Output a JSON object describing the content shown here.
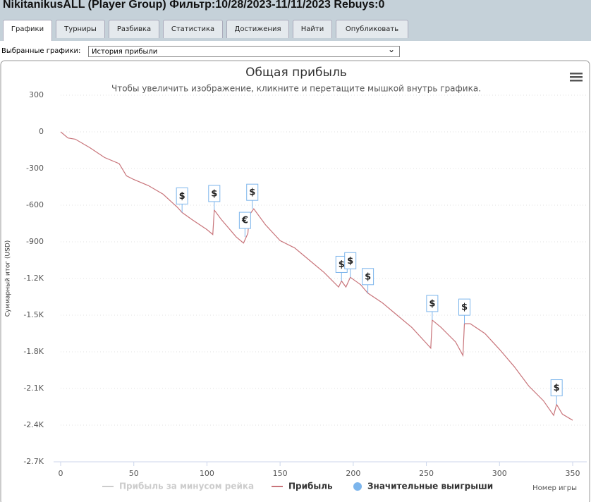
{
  "header": {
    "title": "NikitanikusALL (Player Group) Фильтр:10/28/2023-11/11/2023 Rebuys:0"
  },
  "tabs": [
    "Графики",
    "Турниры",
    "Разбивка",
    "Статистика",
    "Достижения",
    "Найти",
    "Опубликовать"
  ],
  "active_tab": 0,
  "selector": {
    "label": "Выбранные графики:",
    "value": "История прибыли"
  },
  "chart_data": {
    "type": "line",
    "title": "Общая прибыль",
    "subtitle": "Чтобы увеличить изображение, кликните и перетащите мышкой внутрь графика.",
    "x_label": "Номер игры",
    "y_label": "Суммарный итог (USD)",
    "xlim": [
      0,
      350
    ],
    "xticks": [
      0,
      50,
      100,
      150,
      200,
      250,
      300,
      350
    ],
    "ylim": [
      -2700,
      300
    ],
    "yticks": [
      300,
      0,
      -300,
      -600,
      -900,
      {
        "value": -1200,
        "label": "-1.2K"
      },
      {
        "value": -1500,
        "label": "-1.5K"
      },
      {
        "value": -1800,
        "label": "-1.8K"
      },
      {
        "value": -2100,
        "label": "-2.1K"
      },
      {
        "value": -2400,
        "label": "-2.4K"
      },
      {
        "value": -2700,
        "label": "-2.7K"
      }
    ],
    "grid": true,
    "x": [
      0,
      5,
      10,
      20,
      30,
      40,
      45,
      50,
      60,
      70,
      80,
      83,
      90,
      100,
      104,
      105,
      110,
      120,
      125,
      128,
      129,
      132,
      140,
      150,
      160,
      170,
      180,
      190,
      192,
      195,
      198,
      205,
      210,
      220,
      230,
      240,
      250,
      253,
      254,
      260,
      270,
      275,
      276,
      280,
      290,
      300,
      310,
      320,
      330,
      337,
      339,
      343,
      350
    ],
    "series": [
      {
        "name": "Прибыль за минусом рейка",
        "color": "#cccccc",
        "hidden": true
      },
      {
        "name": "Прибыль",
        "color": "#c8747a",
        "values": [
          0,
          -50,
          -60,
          -130,
          -210,
          -260,
          -360,
          -390,
          -440,
          -510,
          -620,
          -660,
          -720,
          -800,
          -840,
          -640,
          -720,
          -860,
          -910,
          -830,
          -680,
          -630,
          -760,
          -890,
          -950,
          -1050,
          -1150,
          -1270,
          -1220,
          -1270,
          -1190,
          -1250,
          -1320,
          -1400,
          -1500,
          -1600,
          -1730,
          -1770,
          -1540,
          -1600,
          -1720,
          -1830,
          -1570,
          -1570,
          -1650,
          -1780,
          -1920,
          -2080,
          -2200,
          -2320,
          -2230,
          -2310,
          -2360
        ]
      }
    ],
    "flags": {
      "name": "Значительные выигрыши",
      "color": "#7cb5ec",
      "points": [
        {
          "x": 83,
          "y": -660,
          "label": "$"
        },
        {
          "x": 105,
          "y": -640,
          "label": "$"
        },
        {
          "x": 126,
          "y": -860,
          "label": "€"
        },
        {
          "x": 131,
          "y": -630,
          "label": "$"
        },
        {
          "x": 192,
          "y": -1220,
          "label": "$"
        },
        {
          "x": 198,
          "y": -1190,
          "label": "$"
        },
        {
          "x": 210,
          "y": -1320,
          "label": "$"
        },
        {
          "x": 254,
          "y": -1540,
          "label": "$"
        },
        {
          "x": 276,
          "y": -1570,
          "label": "$"
        },
        {
          "x": 339,
          "y": -2230,
          "label": "$"
        }
      ]
    }
  }
}
